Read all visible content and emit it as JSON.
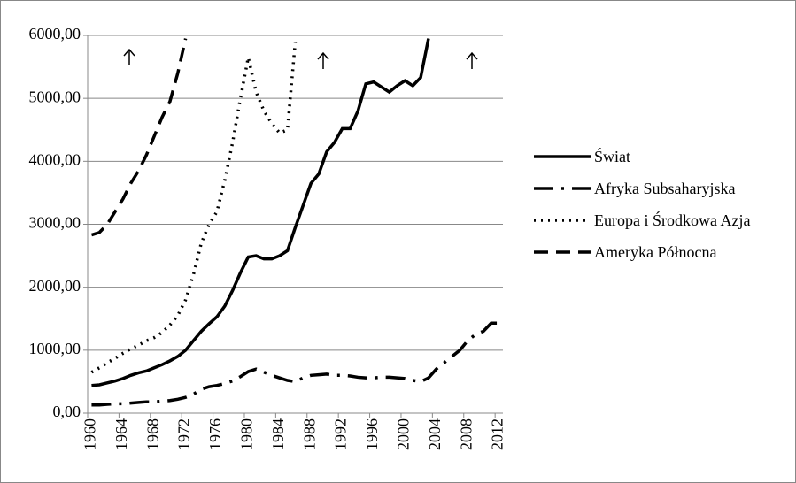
{
  "chart_data": {
    "type": "line",
    "categories": [
      "1960",
      null,
      null,
      null,
      "1964",
      null,
      null,
      null,
      "1968",
      null,
      null,
      null,
      "1972",
      null,
      null,
      null,
      "1976",
      null,
      null,
      null,
      "1980",
      null,
      null,
      null,
      "1984",
      null,
      null,
      null,
      "1988",
      null,
      null,
      null,
      "1992",
      null,
      null,
      null,
      "1996",
      null,
      null,
      null,
      "2000",
      null,
      null,
      null,
      "2004",
      null,
      null,
      null,
      "2008",
      null,
      null,
      null,
      "2012"
    ],
    "series": [
      {
        "name": "Świat",
        "color": "#000000",
        "values": [
          440,
          450,
          480,
          510,
          550,
          600,
          640,
          670,
          720,
          770,
          830,
          900,
          1000,
          1150,
          1300,
          1420,
          1530,
          1700,
          1950,
          2230,
          2480,
          2500,
          2450,
          2450,
          2500,
          2580,
          2950,
          3300,
          3650,
          3800,
          4150,
          4300,
          4520,
          4520,
          4800,
          5230,
          5260,
          5180,
          5100,
          5200,
          5280,
          5200,
          5330,
          5950,
          null,
          null,
          null,
          null,
          null,
          null,
          null,
          null,
          null
        ]
      },
      {
        "name": "Afryka Subsaharyjska",
        "color": "#000000",
        "values": [
          130,
          130,
          140,
          150,
          150,
          160,
          170,
          180,
          180,
          190,
          200,
          220,
          250,
          300,
          380,
          420,
          440,
          470,
          510,
          580,
          660,
          700,
          650,
          600,
          560,
          520,
          500,
          560,
          600,
          610,
          620,
          600,
          600,
          590,
          570,
          560,
          560,
          570,
          570,
          560,
          550,
          520,
          500,
          560,
          700,
          800,
          900,
          1000,
          1150,
          1250,
          1300,
          1430,
          1430
        ]
      },
      {
        "name": "Europa i Środkowa Azja",
        "color": "#000000",
        "values": [
          650,
          720,
          800,
          870,
          950,
          1020,
          1080,
          1150,
          1200,
          1280,
          1400,
          1550,
          1800,
          2200,
          2700,
          3000,
          3200,
          3700,
          4300,
          5000,
          5650,
          5100,
          4800,
          4600,
          4450,
          4500,
          5900,
          null,
          null,
          null,
          null,
          null,
          null,
          null,
          null,
          null,
          null,
          null,
          null,
          null,
          null,
          null,
          null,
          null,
          null,
          null,
          null,
          null,
          null,
          null,
          null,
          null,
          null
        ]
      },
      {
        "name": "Ameryka Północna",
        "color": "#000000",
        "values": [
          2830,
          2870,
          3000,
          3200,
          3400,
          3650,
          3850,
          4100,
          4400,
          4700,
          4950,
          5400,
          5950,
          null,
          null,
          null,
          null,
          null,
          null,
          null,
          null,
          null,
          null,
          null,
          null,
          null,
          null,
          null,
          null,
          null,
          null,
          null,
          null,
          null,
          null,
          null,
          null,
          null,
          null,
          null,
          null,
          null,
          null,
          null,
          null,
          null,
          null,
          null,
          null,
          null,
          null,
          null,
          null
        ]
      }
    ],
    "ylim": [
      0,
      6000
    ],
    "yticks": [
      {
        "value": 0,
        "label": "0,00"
      },
      {
        "value": 1000,
        "label": "1000,00"
      },
      {
        "value": 2000,
        "label": "2000,00"
      },
      {
        "value": 3000,
        "label": "3000,00"
      },
      {
        "value": 4000,
        "label": "4000,00"
      },
      {
        "value": 5000,
        "label": "5000,00"
      },
      {
        "value": 6000,
        "label": "6000,00"
      }
    ],
    "grid": true,
    "legend": "right"
  }
}
